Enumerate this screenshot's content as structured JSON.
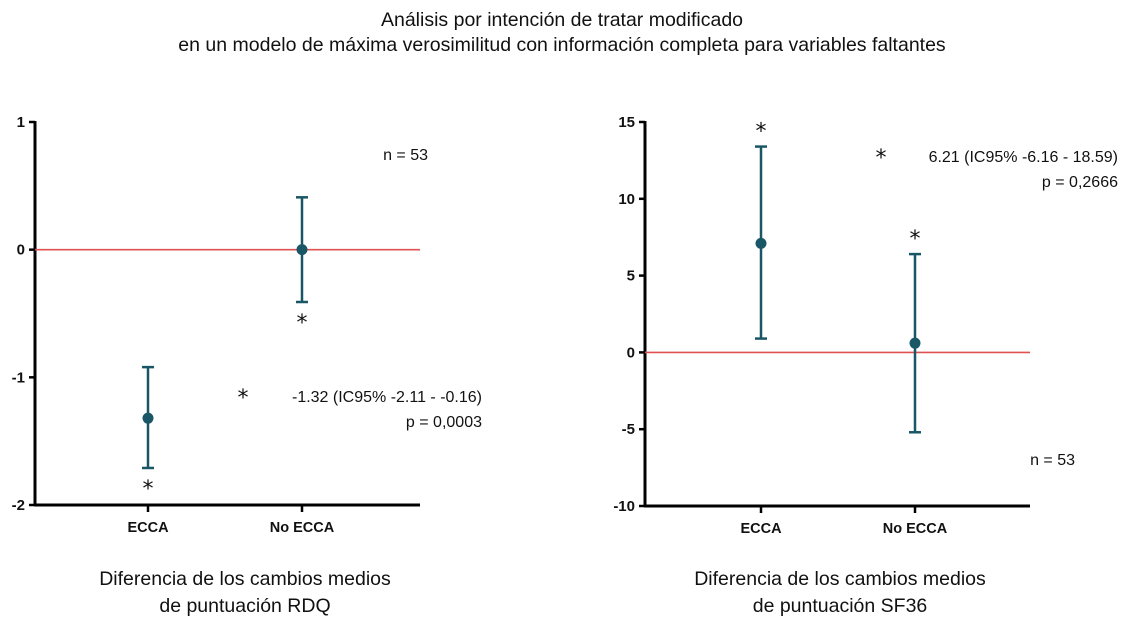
{
  "title_line1": "Análisis por intención de tratar modificado",
  "title_line2": "en un modelo de máxima verosimilitud con información completa para variables faltantes",
  "colors": {
    "point": "#1a5766",
    "reference_line": "#e05050",
    "axis": "#000000"
  },
  "chart_data": [
    {
      "type": "scatter",
      "subtitle_line1": "Diferencia de los cambios medios",
      "subtitle_line2": "de puntuación RDQ",
      "categories": [
        "ECCA",
        "No ECCA"
      ],
      "y": [
        -1.32,
        0.0
      ],
      "error_low": [
        -1.71,
        -0.41
      ],
      "error_high": [
        -0.92,
        0.41
      ],
      "significant_star": [
        true,
        true
      ],
      "star_position": [
        "below",
        "below"
      ],
      "ylim": [
        -2,
        1
      ],
      "yticks": [
        "1",
        "0",
        "-1",
        "-2"
      ],
      "ytick_values": [
        1,
        0,
        -1,
        -2
      ],
      "reference_line": 0,
      "annotations": {
        "n": "n = 53",
        "star": "*",
        "estimate": "-1.32 (IC95% -2.11 - -0.16)",
        "p": "p = 0,0003"
      }
    },
    {
      "type": "scatter",
      "subtitle_line1": "Diferencia de los cambios medios",
      "subtitle_line2": "de puntuación SF36",
      "categories": [
        "ECCA",
        "No ECCA"
      ],
      "y": [
        7.1,
        0.6
      ],
      "error_low": [
        0.9,
        -5.2
      ],
      "error_high": [
        13.4,
        6.4
      ],
      "significant_star": [
        true,
        true
      ],
      "star_position": [
        "above",
        "above"
      ],
      "ylim": [
        -10,
        15
      ],
      "yticks": [
        "15",
        "10",
        "5",
        "0",
        "-5",
        "-10"
      ],
      "ytick_values": [
        15,
        10,
        5,
        0,
        -5,
        -10
      ],
      "reference_line": 0,
      "annotations": {
        "n": "n = 53",
        "star": "*",
        "estimate": "6.21 (IC95% -6.16 - 18.59)",
        "p": "p = 0,2666"
      }
    }
  ]
}
